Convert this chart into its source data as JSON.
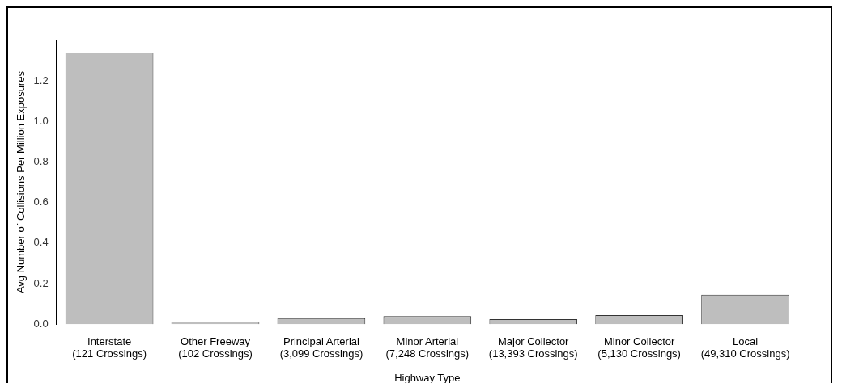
{
  "chart_data": {
    "type": "bar",
    "xlabel": "Highway Type",
    "ylabel": "Avg Number of Collisions Per Million Exposures",
    "categories": [
      "Interstate\n(121 Crossings)",
      "Other Freeway\n(102 Crossings)",
      "Principal Arterial\n(3,099 Crossings)",
      "Minor Arterial\n(7,248 Crossings)",
      "Major Collector\n(13,393 Crossings)",
      "Minor Collector\n(5,130 Crossings)",
      "Local\n(49,310 Crossings)"
    ],
    "values": [
      1.34,
      0.013,
      0.03,
      0.04,
      0.025,
      0.045,
      0.145
    ],
    "color": "#bebebe",
    "ylim": [
      0,
      1.4
    ],
    "yticks": [
      {
        "value": 0,
        "label": "0.0"
      },
      0.2,
      0.4,
      0.6,
      0.8,
      {
        "value": 1,
        "label": "1.0"
      },
      1.2
    ],
    "grid": false,
    "legend": false
  }
}
